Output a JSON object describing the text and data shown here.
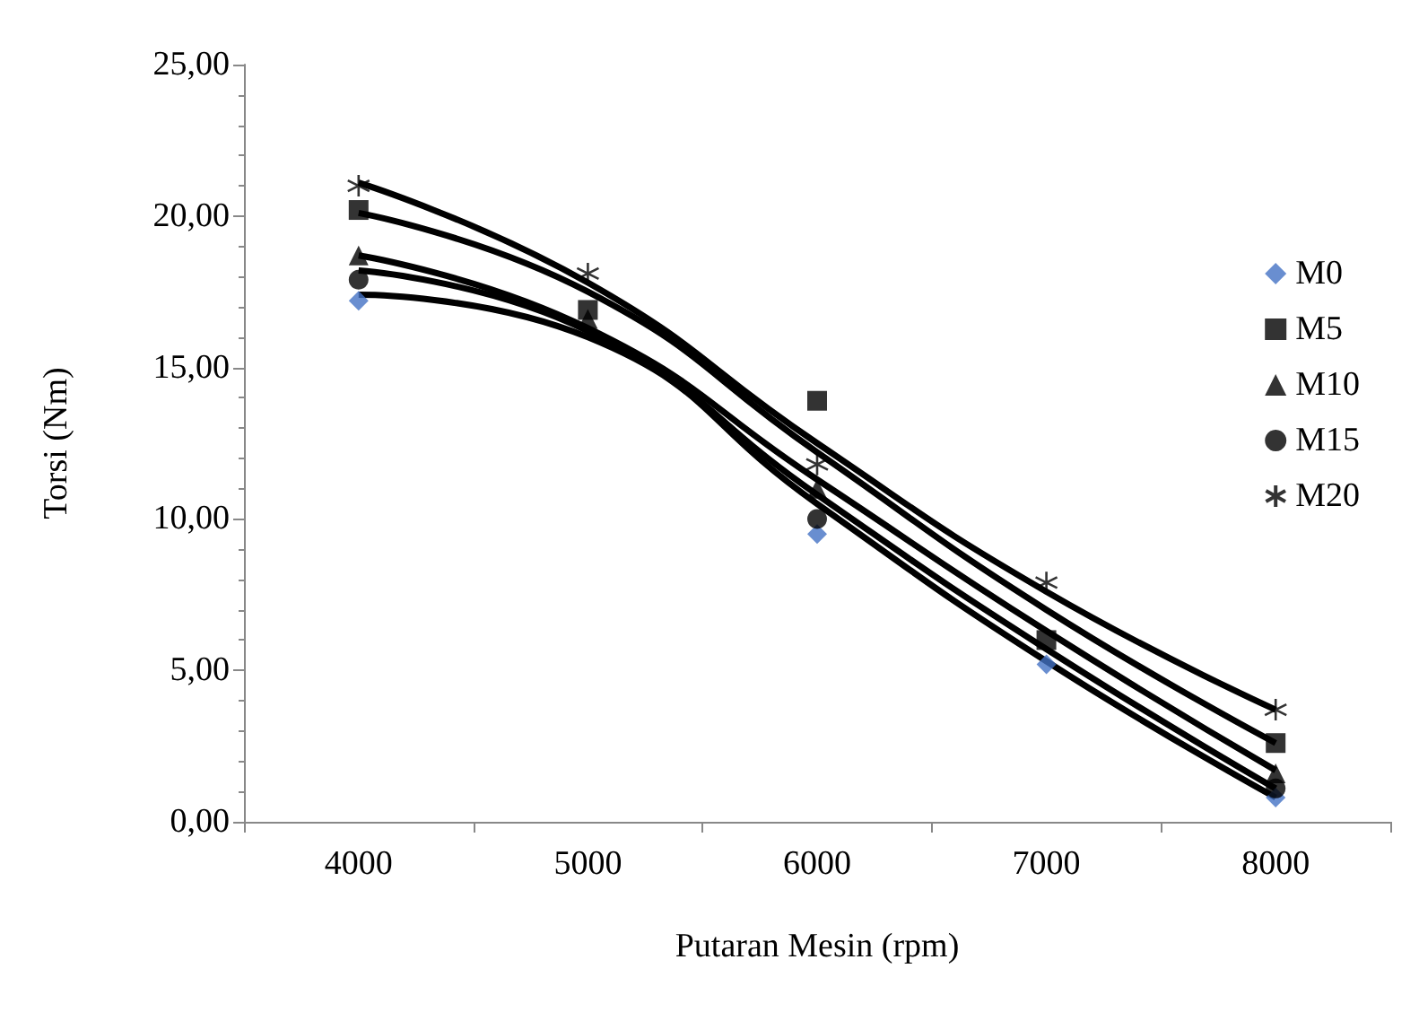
{
  "chart_data": {
    "type": "scatter",
    "xlabel": "Putaran Mesin (rpm)",
    "ylabel": "Torsi (Nm)",
    "categories": [
      "4000",
      "5000",
      "6000",
      "7000",
      "8000"
    ],
    "ylim": [
      0,
      25
    ],
    "yticks": [
      {
        "value": 0,
        "label": "0,00"
      },
      {
        "value": 5,
        "label": "5,00"
      },
      {
        "value": 10,
        "label": "10,00"
      },
      {
        "value": 15,
        "label": "15,00"
      },
      {
        "value": 20,
        "label": "20,00"
      },
      {
        "value": 25,
        "label": "25,00"
      }
    ],
    "grid": false,
    "legend": "right",
    "series": [
      {
        "name": "M0",
        "color": "#4472c4",
        "marker": "diamond",
        "values": [
          17.2,
          null,
          9.5,
          5.2,
          0.8
        ]
      },
      {
        "name": "M5",
        "color": "#000000",
        "marker": "square",
        "values": [
          20.2,
          16.9,
          13.9,
          6.0,
          2.6
        ]
      },
      {
        "name": "M10",
        "color": "#000000",
        "marker": "triangle",
        "values": [
          18.7,
          16.6,
          11.0,
          null,
          1.6
        ]
      },
      {
        "name": "M15",
        "color": "#000000",
        "marker": "circle",
        "values": [
          17.9,
          null,
          10.0,
          null,
          1.1
        ]
      },
      {
        "name": "M20",
        "color": "#000000",
        "marker": "cross",
        "values": [
          21.0,
          18.1,
          11.8,
          7.9,
          3.7
        ]
      },
      {
        "type": "line",
        "color": "#000000",
        "marker": "none",
        "values": [
          17.4,
          16.0,
          10.5,
          5.3,
          0.8
        ]
      },
      {
        "type": "line",
        "color": "#000000",
        "marker": "none",
        "values": [
          20.1,
          17.5,
          12.2,
          7.0,
          2.6
        ]
      },
      {
        "type": "line",
        "color": "#000000",
        "marker": "none",
        "values": [
          18.7,
          16.3,
          11.3,
          6.3,
          1.7
        ]
      },
      {
        "type": "line",
        "color": "#000000",
        "marker": "none",
        "values": [
          18.2,
          16.2,
          10.8,
          5.7,
          1.1
        ]
      },
      {
        "type": "line",
        "color": "#000000",
        "marker": "none",
        "values": [
          21.1,
          17.8,
          12.5,
          7.6,
          3.7
        ]
      }
    ]
  }
}
